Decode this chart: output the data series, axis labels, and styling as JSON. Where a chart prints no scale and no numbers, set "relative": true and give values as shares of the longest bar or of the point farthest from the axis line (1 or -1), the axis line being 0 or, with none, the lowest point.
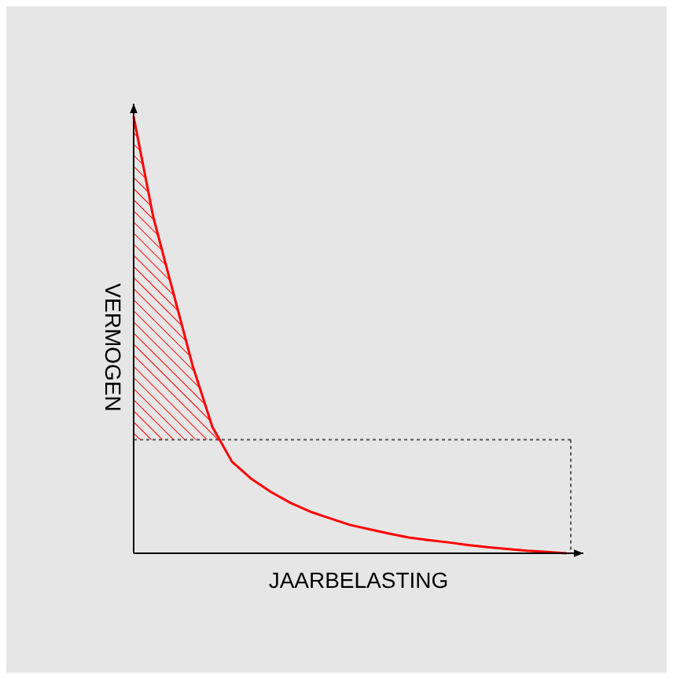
{
  "chart_data": {
    "type": "line",
    "xlabel": "JAARBELASTING",
    "ylabel": "VERMOGEN",
    "relative": true,
    "categories": [
      null,
      null,
      null,
      null,
      null,
      null,
      null,
      null,
      null,
      null,
      null,
      null,
      null,
      null,
      null,
      null,
      null,
      null,
      null,
      null,
      null,
      null,
      null
    ],
    "series": [
      {
        "color": "#ff0000",
        "values": [
          1,
          0.77,
          0.6,
          0.43,
          0.29,
          0.21,
          0.17,
          0.14,
          0.115,
          0.095,
          0.08,
          0.065,
          0.055,
          0.045,
          0.036,
          0.03,
          0.025,
          0.019,
          0.014,
          0.01,
          0.006,
          0.003,
          0
        ]
      }
    ],
    "ref_lines": [
      {
        "axis": "y",
        "value": 0.26,
        "color": "#555555",
        "line_style": "dotted"
      }
    ]
  }
}
